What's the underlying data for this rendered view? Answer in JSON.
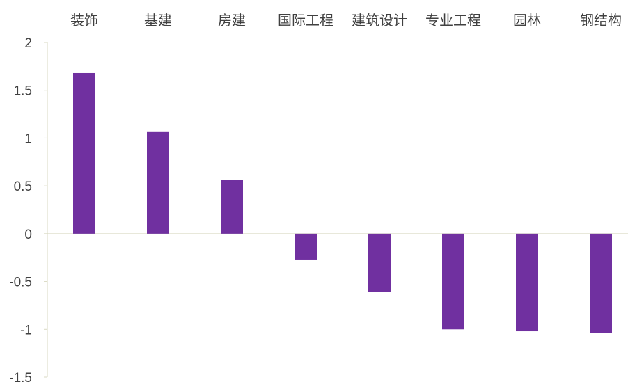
{
  "chart_data": {
    "type": "bar",
    "title": "",
    "xlabel": "",
    "ylabel": "",
    "categories": [
      "装饰",
      "基建",
      "房建",
      "国际工程",
      "建筑设计",
      "专业工程",
      "园林",
      "钢结构"
    ],
    "values": [
      1.68,
      1.07,
      0.56,
      -0.27,
      -0.61,
      -1.0,
      -1.02,
      -1.04
    ],
    "ylim": [
      -1.5,
      2
    ],
    "yticks": [
      "2",
      "1.5",
      "1",
      "0.5",
      "0",
      "-0.5",
      "-1",
      "-1.5"
    ],
    "category_axis_position": "top",
    "grid": false,
    "legend": "none",
    "colors": {
      "bar": "#7030A0",
      "axis": "#D9D9C3",
      "text": "#404040"
    }
  }
}
